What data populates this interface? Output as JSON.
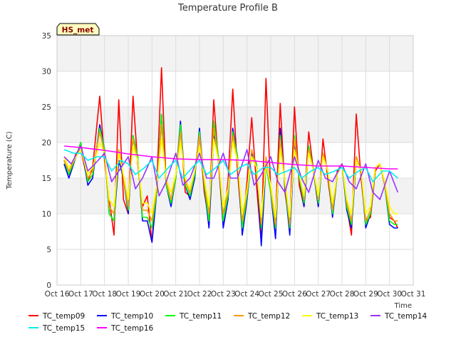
{
  "chart_data": {
    "type": "line",
    "title": "Temperature Profile B",
    "xlabel": "Time",
    "ylabel": "Temperature (C)",
    "badge": "HS_met",
    "xlim": [
      16,
      31
    ],
    "ylim": [
      0,
      35
    ],
    "x_ticks": [
      {
        "value": 16,
        "label": "Oct 16"
      },
      {
        "value": 17,
        "label": "Oct 17"
      },
      {
        "value": 18,
        "label": "Oct 18"
      },
      {
        "value": 19,
        "label": "Oct 19"
      },
      {
        "value": 20,
        "label": "Oct 20"
      },
      {
        "value": 21,
        "label": "Oct 21"
      },
      {
        "value": 22,
        "label": "Oct 22"
      },
      {
        "value": 23,
        "label": "Oct 23"
      },
      {
        "value": 24,
        "label": "Oct 24"
      },
      {
        "value": 25,
        "label": "Oct 25"
      },
      {
        "value": 26,
        "label": "Oct 26"
      },
      {
        "value": 27,
        "label": "Oct 27"
      },
      {
        "value": 28,
        "label": "Oct 28"
      },
      {
        "value": 29,
        "label": "Oct 29"
      },
      {
        "value": 30,
        "label": "Oct 30"
      },
      {
        "value": 31,
        "label": "Oct 31"
      }
    ],
    "y_ticks": [
      0,
      5,
      10,
      15,
      20,
      25,
      30,
      35
    ],
    "bands": [
      [
        10,
        15
      ],
      [
        20,
        25
      ],
      [
        30,
        35
      ]
    ],
    "band_color": "#f2f2f2",
    "legend_position": "bottom",
    "series": [
      {
        "name": "TC_temp09",
        "color": "#ff0000",
        "x": [
          16.3,
          16.5,
          16.8,
          17.0,
          17.3,
          17.5,
          17.8,
          18.0,
          18.2,
          18.4,
          18.6,
          18.8,
          19.0,
          19.2,
          19.4,
          19.6,
          19.8,
          20.0,
          20.2,
          20.4,
          20.6,
          20.8,
          21.0,
          21.2,
          21.4,
          21.6,
          21.8,
          22.0,
          22.2,
          22.4,
          22.6,
          22.8,
          23.0,
          23.2,
          23.4,
          23.6,
          23.8,
          24.0,
          24.2,
          24.4,
          24.6,
          24.8,
          25.0,
          25.2,
          25.4,
          25.6,
          25.8,
          26.0,
          26.2,
          26.4,
          26.6,
          26.8,
          27.0,
          27.2,
          27.4,
          27.6,
          27.8,
          28.0,
          28.2,
          28.4,
          28.6,
          28.8,
          29.0,
          29.2,
          29.4,
          29.6,
          29.8,
          30.0,
          30.2,
          30.35
        ],
        "y": [
          17.5,
          15.5,
          18.5,
          19,
          14.5,
          16.5,
          26.5,
          17.5,
          12,
          7,
          26,
          12,
          10,
          26.5,
          17,
          11,
          12.5,
          6,
          14,
          30.5,
          14,
          11.5,
          15,
          22,
          13,
          12.5,
          16,
          21,
          13,
          9,
          26,
          17,
          8.5,
          14.5,
          27.5,
          16,
          8,
          14.5,
          23.5,
          14,
          6,
          29,
          13,
          9,
          25.5,
          13,
          8.5,
          25,
          14,
          11,
          21.5,
          16,
          11,
          20.5,
          15,
          10,
          16,
          17,
          11,
          7,
          24,
          15,
          9,
          9.5,
          16,
          17,
          14,
          9.5,
          9,
          8
        ]
      },
      {
        "name": "TC_temp10",
        "color": "#0000ff",
        "x": [
          16.3,
          16.5,
          16.8,
          17.0,
          17.3,
          17.5,
          17.8,
          18.0,
          18.2,
          18.4,
          18.6,
          18.8,
          19.0,
          19.2,
          19.4,
          19.6,
          19.8,
          20.0,
          20.2,
          20.4,
          20.6,
          20.8,
          21.0,
          21.2,
          21.4,
          21.6,
          21.8,
          22.0,
          22.2,
          22.4,
          22.6,
          22.8,
          23.0,
          23.2,
          23.4,
          23.6,
          23.8,
          24.0,
          24.2,
          24.4,
          24.6,
          24.8,
          25.0,
          25.2,
          25.4,
          25.6,
          25.8,
          26.0,
          26.2,
          26.4,
          26.6,
          26.8,
          27.0,
          27.2,
          27.4,
          27.6,
          27.8,
          28.0,
          28.2,
          28.4,
          28.6,
          28.8,
          29.0,
          29.2,
          29.4,
          29.6,
          29.8,
          30.0,
          30.2,
          30.35
        ],
        "y": [
          17,
          15,
          18,
          20,
          14,
          15,
          22.5,
          19,
          10,
          9,
          17.5,
          15,
          10,
          21,
          18,
          9,
          9,
          6,
          13,
          24,
          14,
          11,
          15,
          23,
          14,
          12,
          15,
          22,
          14,
          8,
          21,
          18,
          8,
          12,
          22,
          18,
          7,
          12,
          18.5,
          17,
          5.5,
          17,
          13,
          6.5,
          22,
          14,
          7,
          20,
          15,
          11,
          19,
          16,
          11,
          18.5,
          16,
          9.5,
          15.5,
          17,
          10.5,
          8,
          17.5,
          16,
          8,
          10,
          16.5,
          17,
          14,
          8.5,
          8,
          8
        ]
      },
      {
        "name": "TC_temp11",
        "color": "#00ff00",
        "x": [
          16.3,
          16.5,
          16.8,
          17.0,
          17.3,
          17.5,
          17.8,
          18.0,
          18.2,
          18.4,
          18.6,
          18.8,
          19.0,
          19.2,
          19.4,
          19.6,
          19.8,
          20.0,
          20.2,
          20.4,
          20.6,
          20.8,
          21.0,
          21.2,
          21.4,
          21.6,
          21.8,
          22.0,
          22.2,
          22.4,
          22.6,
          22.8,
          23.0,
          23.2,
          23.4,
          23.6,
          23.8,
          24.0,
          24.2,
          24.4,
          24.6,
          24.8,
          25.0,
          25.2,
          25.4,
          25.6,
          25.8,
          26.0,
          26.2,
          26.4,
          26.6,
          26.8,
          27.0,
          27.2,
          27.4,
          27.6,
          27.8,
          28.0,
          28.2,
          28.4,
          28.6,
          28.8,
          29.0,
          29.2,
          29.4,
          29.6,
          29.8,
          30.0,
          30.2,
          30.35
        ],
        "y": [
          17.5,
          15.5,
          18,
          20,
          14.5,
          15.5,
          22,
          19,
          10,
          9,
          19,
          15,
          10.5,
          21,
          18,
          9.5,
          9.5,
          8,
          13,
          24,
          14,
          11.5,
          15,
          22.5,
          14,
          12.5,
          15.5,
          21.5,
          14,
          9,
          23,
          18,
          9,
          12.5,
          21.5,
          18,
          8,
          12.5,
          18,
          17,
          8,
          17,
          13,
          8,
          21,
          14,
          8,
          21,
          15,
          11.5,
          19.5,
          16,
          11.5,
          18.5,
          16,
          10,
          15.5,
          17,
          11,
          8.5,
          18,
          16,
          8.5,
          10,
          16.5,
          17,
          14,
          9,
          8.5,
          8.5
        ]
      },
      {
        "name": "TC_temp12",
        "color": "#ff9900",
        "x": [
          16.3,
          16.5,
          16.8,
          17.0,
          17.3,
          17.5,
          17.8,
          18.0,
          18.2,
          18.4,
          18.6,
          18.8,
          19.0,
          19.2,
          19.4,
          19.6,
          19.8,
          20.0,
          20.2,
          20.4,
          20.6,
          20.8,
          21.0,
          21.2,
          21.4,
          21.6,
          21.8,
          22.0,
          22.2,
          22.4,
          22.6,
          22.8,
          23.0,
          23.2,
          23.4,
          23.6,
          23.8,
          24.0,
          24.2,
          24.4,
          24.6,
          24.8,
          25.0,
          25.2,
          25.4,
          25.6,
          25.8,
          26.0,
          26.2,
          26.4,
          26.6,
          26.8,
          27.0,
          27.2,
          27.4,
          27.6,
          27.8,
          28.0,
          28.2,
          28.4,
          28.6,
          28.8,
          29.0,
          29.2,
          29.4,
          29.6,
          29.8,
          30.0,
          30.2,
          30.35
        ],
        "y": [
          17.5,
          16,
          18,
          19.5,
          15,
          16,
          21.5,
          18.5,
          11,
          10,
          19,
          15,
          11,
          20.5,
          17.5,
          10.5,
          10.5,
          9,
          13.5,
          22.5,
          14.5,
          12,
          15.5,
          21.5,
          14.5,
          13,
          16,
          21,
          14.5,
          10,
          22,
          17.5,
          10,
          13,
          21,
          17.5,
          9,
          13,
          19,
          16.5,
          8.5,
          18,
          13.5,
          8.5,
          20.5,
          14.5,
          8.5,
          20.5,
          15.5,
          12,
          19,
          16,
          12,
          18.5,
          16,
          10.5,
          15.5,
          17,
          11.5,
          9,
          18,
          16,
          9,
          10.5,
          16.5,
          17,
          14,
          10,
          9,
          9
        ]
      },
      {
        "name": "TC_temp13",
        "color": "#ffff00",
        "x": [
          16.3,
          16.5,
          16.8,
          17.0,
          17.3,
          17.5,
          17.8,
          18.0,
          18.2,
          18.4,
          18.6,
          18.8,
          19.0,
          19.2,
          19.4,
          19.6,
          19.8,
          20.0,
          20.2,
          20.4,
          20.6,
          20.8,
          21.0,
          21.2,
          21.4,
          21.6,
          21.8,
          22.0,
          22.2,
          22.4,
          22.6,
          22.8,
          23.0,
          23.2,
          23.4,
          23.6,
          23.8,
          24.0,
          24.2,
          24.4,
          24.6,
          24.8,
          25.0,
          25.2,
          25.4,
          25.6,
          25.8,
          26.0,
          26.2,
          26.4,
          26.6,
          26.8,
          27.0,
          27.2,
          27.4,
          27.6,
          27.8,
          28.0,
          28.2,
          28.4,
          28.6,
          28.8,
          29.0,
          29.2,
          29.4,
          29.6,
          29.8,
          30.0,
          30.2,
          30.35
        ],
        "y": [
          18,
          16.5,
          18,
          19,
          15.5,
          16.5,
          20,
          18.5,
          12,
          11,
          18.5,
          15.5,
          12,
          19.5,
          17.5,
          11.5,
          11.5,
          10,
          14,
          20.5,
          15,
          13,
          15.5,
          20,
          15,
          13.5,
          16,
          19.5,
          15,
          11,
          20.5,
          17.5,
          11,
          13.5,
          20,
          17.5,
          10,
          13.5,
          18,
          16.5,
          9.5,
          17,
          14,
          9.5,
          19,
          14.5,
          9.5,
          19,
          15.5,
          12.5,
          18.5,
          16,
          12.5,
          18,
          16,
          11.5,
          15.5,
          17,
          12,
          10,
          17.5,
          16,
          10,
          11,
          16.5,
          17,
          14.5,
          11,
          10,
          10
        ]
      },
      {
        "name": "TC_temp14",
        "color": "#9933ff",
        "x": [
          16.3,
          16.6,
          17.0,
          17.3,
          17.6,
          18.0,
          18.3,
          18.6,
          19.0,
          19.3,
          19.6,
          20.0,
          20.3,
          20.6,
          21.0,
          21.3,
          21.6,
          22.0,
          22.3,
          22.6,
          23.0,
          23.3,
          23.6,
          24.0,
          24.3,
          24.6,
          25.0,
          25.3,
          25.6,
          26.0,
          26.3,
          26.6,
          27.0,
          27.3,
          27.6,
          28.0,
          28.3,
          28.6,
          29.0,
          29.3,
          29.6,
          30.0,
          30.35
        ],
        "y": [
          18,
          17,
          19.5,
          16,
          17,
          18.5,
          14.5,
          16,
          18,
          13.5,
          15,
          18,
          12.5,
          14.5,
          18.5,
          14,
          15,
          18.5,
          15,
          15,
          18.5,
          15,
          15,
          19,
          14,
          15.5,
          18,
          14.5,
          13,
          18,
          15,
          13,
          17.5,
          15,
          14.5,
          17,
          14.5,
          13.5,
          17,
          13,
          12,
          16,
          13
        ]
      },
      {
        "name": "TC_temp15",
        "color": "#00eeee",
        "x": [
          16.3,
          16.7,
          17.0,
          17.3,
          17.7,
          18.0,
          18.3,
          18.7,
          19.0,
          19.3,
          19.7,
          20.0,
          20.3,
          20.7,
          21.0,
          21.3,
          21.7,
          22.0,
          22.3,
          22.7,
          23.0,
          23.3,
          23.7,
          24.0,
          24.3,
          24.7,
          25.0,
          25.3,
          25.7,
          26.0,
          26.3,
          26.7,
          27.0,
          27.3,
          27.7,
          28.0,
          28.3,
          28.7,
          29.0,
          29.3,
          29.7,
          30.0,
          30.35
        ],
        "y": [
          19,
          18.5,
          18.5,
          17.5,
          18,
          18,
          16,
          17.5,
          17,
          15.5,
          16.5,
          17.5,
          15,
          16.5,
          17.5,
          15,
          16.5,
          17.5,
          15.5,
          16.5,
          17.5,
          15.5,
          16.5,
          17,
          15.5,
          16.5,
          16.5,
          15.5,
          16,
          16.5,
          15,
          16,
          16.5,
          15.5,
          16,
          16.5,
          15,
          16,
          16.5,
          14.5,
          16,
          16,
          15
        ]
      },
      {
        "name": "TC_temp16",
        "color": "#ff00ff",
        "x": [
          16.3,
          17.0,
          18.0,
          19.0,
          20.0,
          21.0,
          22.0,
          23.0,
          24.0,
          25.0,
          26.0,
          27.0,
          28.0,
          29.0,
          30.0,
          30.35
        ],
        "y": [
          19.5,
          19.3,
          18.9,
          18.4,
          18.0,
          17.7,
          17.6,
          17.6,
          17.5,
          17.2,
          16.9,
          16.7,
          16.7,
          16.5,
          16.3,
          16.3
        ]
      }
    ]
  }
}
